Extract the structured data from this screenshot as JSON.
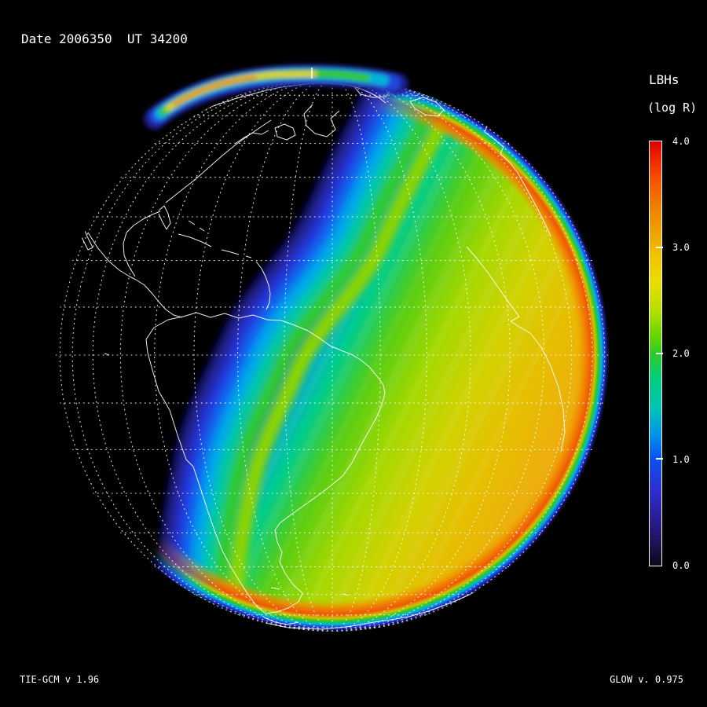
{
  "title_bar": {
    "date_label": "Date 2006350  UT 34200"
  },
  "colorbar": {
    "title": "LBHs",
    "subtitle": "(log R)",
    "tick_labels": [
      "4.0",
      "3.0",
      "2.0",
      "1.0",
      "0.0"
    ],
    "min": 0.0,
    "max": 4.0,
    "gradient": [
      {
        "o": 0.0,
        "c": "#d80000"
      },
      {
        "o": 0.03,
        "c": "#ee1c00"
      },
      {
        "o": 0.09,
        "c": "#f55200"
      },
      {
        "o": 0.15,
        "c": "#f07c00"
      },
      {
        "o": 0.21,
        "c": "#eda000"
      },
      {
        "o": 0.27,
        "c": "#f0c400"
      },
      {
        "o": 0.33,
        "c": "#ecdc00"
      },
      {
        "o": 0.4,
        "c": "#b2e000"
      },
      {
        "o": 0.46,
        "c": "#62d500"
      },
      {
        "o": 0.5,
        "c": "#2fcb2a"
      },
      {
        "o": 0.56,
        "c": "#00cd7d"
      },
      {
        "o": 0.63,
        "c": "#00c2b8"
      },
      {
        "o": 0.69,
        "c": "#0095e6"
      },
      {
        "o": 0.75,
        "c": "#0d50f0"
      },
      {
        "o": 0.82,
        "c": "#2b2fd0"
      },
      {
        "o": 0.89,
        "c": "#2a1d93"
      },
      {
        "o": 0.95,
        "c": "#1d1155"
      },
      {
        "o": 1.0,
        "c": "#0c0718"
      }
    ]
  },
  "footer": {
    "left": "TIE-GCM v 1.96",
    "right": "GLOW v. 0.975"
  },
  "globe": {
    "background": "#000000",
    "graticule_color": "#ffffff",
    "coastline_color": "#ffffff",
    "day_gradient": [
      {
        "o": 0.0,
        "c": "#000000"
      },
      {
        "o": 0.3,
        "c": "#000000"
      },
      {
        "o": 0.345,
        "c": "#12124f"
      },
      {
        "o": 0.412,
        "c": "#2330cf"
      },
      {
        "o": 0.463,
        "c": "#00a0e8"
      },
      {
        "o": 0.522,
        "c": "#00cd8c"
      },
      {
        "o": 0.588,
        "c": "#55cd14"
      },
      {
        "o": 0.676,
        "c": "#a5d800"
      },
      {
        "o": 0.772,
        "c": "#d2d200"
      },
      {
        "o": 0.868,
        "c": "#e6be00"
      },
      {
        "o": 1.0,
        "c": "#f0a814"
      }
    ],
    "limb_gradient": [
      {
        "o": 0.0,
        "c": "#f0a814",
        "a": 0
      },
      {
        "o": 0.885,
        "c": "#f0a000",
        "a": 0
      },
      {
        "o": 0.915,
        "c": "#f08200",
        "a": 0.9
      },
      {
        "o": 0.938,
        "c": "#ef5606",
        "a": 1
      },
      {
        "o": 0.952,
        "c": "#cfc400",
        "a": 1
      },
      {
        "o": 0.963,
        "c": "#2cc828",
        "a": 1
      },
      {
        "o": 0.974,
        "c": "#00b4d8",
        "a": 1
      },
      {
        "o": 0.984,
        "c": "#1e46e6",
        "a": 1
      },
      {
        "o": 0.993,
        "c": "#15157d",
        "a": 1
      },
      {
        "o": 1.0,
        "c": "#000000",
        "a": 1
      }
    ],
    "terminator_bands": [
      "#23238f",
      "#2234d8",
      "#0a66f0",
      "#00a8e8",
      "#00c9a0",
      "#2fcb2a",
      "#8cd400"
    ],
    "aurora_bands": [
      "#1a1a8c",
      "#2244dd",
      "#00b4d8",
      "#35c818",
      "#e3d400",
      "#f07800"
    ]
  },
  "chart_data": {
    "type": "heatmap",
    "title": "LBHs (log R)",
    "date": "2006350",
    "ut": "34200",
    "colorbar": {
      "label": "LBHs (log R)",
      "orientation": "vertical",
      "range": [
        0.0,
        4.0
      ],
      "ticks": [
        4.0,
        3.0,
        2.0,
        1.0,
        0.0
      ],
      "palette_top_to_bottom": [
        "#d80000",
        "#f55200",
        "#f07c00",
        "#eda000",
        "#f0c400",
        "#ecdc00",
        "#b2e000",
        "#2fcb2a",
        "#00cd7d",
        "#00c2b8",
        "#0095e6",
        "#0d50f0",
        "#2b2fd0",
        "#2a1d93",
        "#1d1155",
        "#0c0718"
      ]
    },
    "models": {
      "left_caption": "TIE-GCM v 1.96",
      "right_caption": "GLOW v. 0.975"
    },
    "depicts": "Orthographic globe over the Americas: bright day-side LBH airglow (amber, ~log R 3) on the right, dark night side on the left, rainbow terminator gradient between, orange limb-brightening ring on the sunlit edge, and an orange auroral oval arc along the northern limb"
  }
}
